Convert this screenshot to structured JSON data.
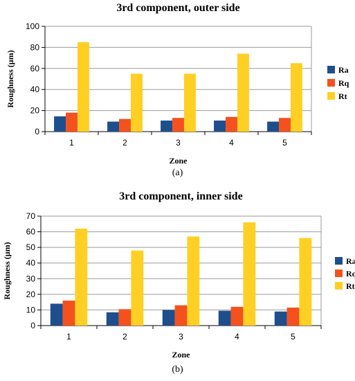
{
  "chart_data": [
    {
      "type": "bar",
      "title": "3rd component, outer side",
      "xlabel": "Zone",
      "ylabel": "Roughness (μm)",
      "categories": [
        "1",
        "2",
        "3",
        "4",
        "5"
      ],
      "ylim": [
        0,
        100
      ],
      "yticks": [
        0,
        20,
        40,
        60,
        80,
        100
      ],
      "grid": true,
      "legend": "right",
      "series": [
        {
          "name": "Ra",
          "color": "#1F4E8C",
          "values": [
            14.5,
            9.5,
            10.5,
            10.5,
            9.5
          ]
        },
        {
          "name": "Rq",
          "color": "#F4511E",
          "values": [
            18,
            12,
            13,
            14,
            13
          ]
        },
        {
          "name": "Rt",
          "color": "#FFD023",
          "values": [
            85,
            55,
            55,
            74,
            65
          ]
        }
      ],
      "caption": "(a)"
    },
    {
      "type": "bar",
      "title": "3rd component, inner side",
      "xlabel": "Zone",
      "ylabel": "Roughness (μm)",
      "categories": [
        "1",
        "2",
        "3",
        "4",
        "5"
      ],
      "ylim": [
        0,
        70
      ],
      "yticks": [
        0,
        10,
        20,
        30,
        40,
        50,
        60,
        70
      ],
      "grid": true,
      "legend": "right",
      "series": [
        {
          "name": "Ra",
          "color": "#1F4E8C",
          "values": [
            14,
            8.5,
            10,
            9.5,
            9
          ]
        },
        {
          "name": "Rq",
          "color": "#F4511E",
          "values": [
            16,
            10.5,
            13,
            12,
            11.5
          ]
        },
        {
          "name": "Rt",
          "color": "#FFD023",
          "values": [
            62,
            48,
            57,
            66,
            56
          ]
        }
      ],
      "caption": "(b)"
    }
  ]
}
